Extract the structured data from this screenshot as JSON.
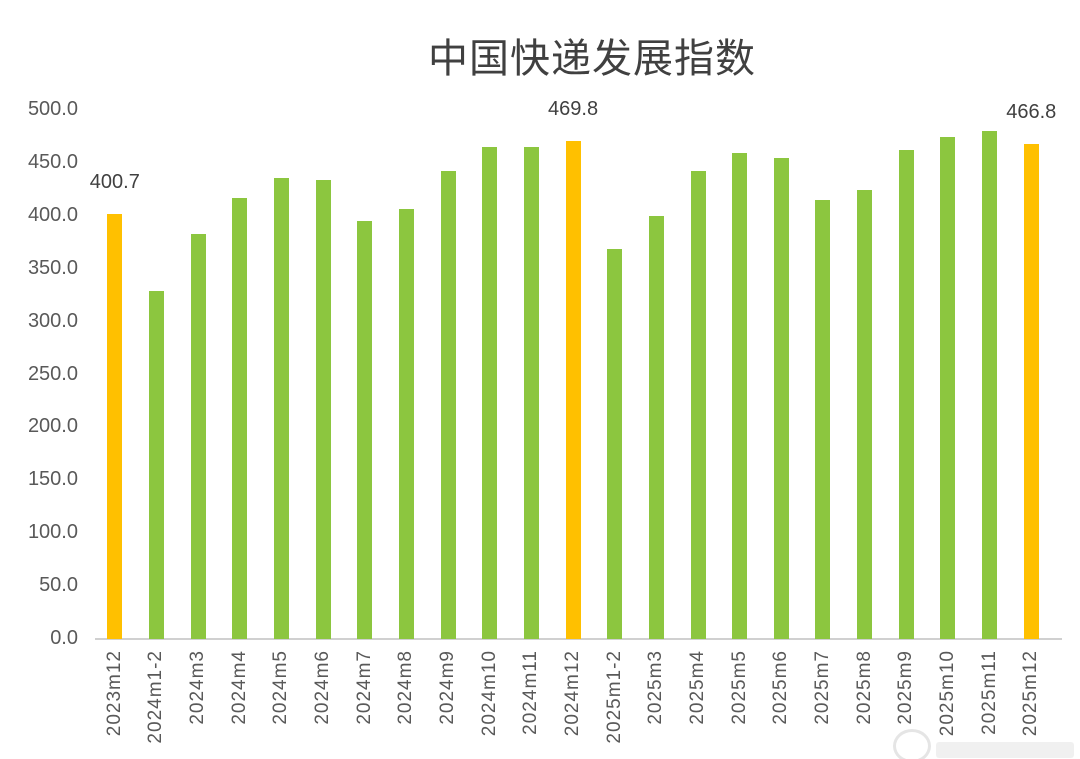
{
  "title": "中国快递发展指数",
  "colors": {
    "bar_green": "#8CC63F",
    "bar_orange": "#FFC000",
    "title_text": "#404040",
    "axis_text": "#595959",
    "axis_line": "#D0D0D0",
    "background": "#FFFFFF"
  },
  "chart_data": {
    "type": "bar",
    "title": "中国快递发展指数",
    "categories": [
      "2023m12",
      "2024m1-2",
      "2024m3",
      "2024m4",
      "2024m5",
      "2024m6",
      "2024m7",
      "2024m8",
      "2024m9",
      "2024m10",
      "2024m11",
      "2024m12",
      "2025m1-2",
      "2025m3",
      "2025m4",
      "2025m5",
      "2025m6",
      "2025m7",
      "2025m8",
      "2025m9",
      "2025m10",
      "2025m11",
      "2025m12"
    ],
    "values": [
      400.7,
      328,
      382,
      416,
      435,
      433,
      394,
      406,
      442,
      464,
      464,
      469.8,
      368,
      399,
      442,
      459,
      454,
      414,
      424,
      461,
      474,
      479,
      466.8
    ],
    "highlighted_categories": [
      "2023m12",
      "2024m12",
      "2025m12"
    ],
    "data_labels": {
      "2023m12": "400.7",
      "2024m12": "469.8",
      "2025m12": "466.8"
    },
    "y_ticks": [
      "500.0",
      "450.0",
      "400.0",
      "350.0",
      "300.0",
      "250.0",
      "200.0",
      "150.0",
      "100.0",
      "50.0",
      "0.0"
    ],
    "ylim": [
      0,
      500
    ],
    "xlabel": "",
    "ylabel": "",
    "grid": false,
    "legend_position": "none",
    "bar_color_default": "#8CC63F",
    "bar_color_highlight": "#FFC000"
  }
}
